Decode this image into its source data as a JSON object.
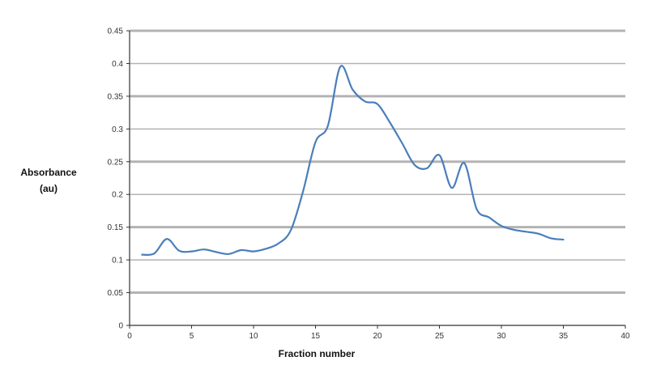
{
  "chart_data": {
    "type": "line",
    "title": "",
    "xlabel": "Fraction number",
    "ylabel_lines": [
      "Absorbance",
      "(au)"
    ],
    "xlim": [
      0,
      40
    ],
    "ylim": [
      0,
      0.45
    ],
    "x_ticks": [
      0,
      5,
      10,
      15,
      20,
      25,
      30,
      35,
      40
    ],
    "y_ticks": [
      0,
      0.05,
      0.1,
      0.15,
      0.2,
      0.25,
      0.3,
      0.35,
      0.4,
      0.45
    ],
    "x_tick_labels": [
      "0",
      "5",
      "10",
      "15",
      "20",
      "25",
      "30",
      "35",
      "40"
    ],
    "y_tick_labels": [
      "0",
      "0.05",
      "0.1",
      "0.15",
      "0.2",
      "0.25",
      "0.3",
      "0.35",
      "0.4",
      "0.45"
    ],
    "grid": true,
    "legend": "none",
    "colors": {
      "line": "#4a7ebb",
      "grid": "#b3b3b3",
      "axis": "#333333"
    },
    "series": [
      {
        "x": [
          1,
          2,
          3,
          4,
          5,
          6,
          7,
          8,
          9,
          10,
          11,
          12,
          13,
          14,
          15,
          16,
          17,
          18,
          19,
          20,
          21,
          22,
          23,
          24,
          25,
          26,
          27,
          28,
          29,
          30,
          31,
          32,
          33,
          34,
          35
        ],
        "values": [
          0.108,
          0.11,
          0.132,
          0.114,
          0.113,
          0.116,
          0.112,
          0.109,
          0.115,
          0.113,
          0.117,
          0.125,
          0.145,
          0.205,
          0.28,
          0.305,
          0.395,
          0.36,
          0.342,
          0.338,
          0.31,
          0.278,
          0.245,
          0.24,
          0.26,
          0.21,
          0.248,
          0.178,
          0.165,
          0.152,
          0.146,
          0.143,
          0.14,
          0.133,
          0.131
        ]
      }
    ]
  }
}
